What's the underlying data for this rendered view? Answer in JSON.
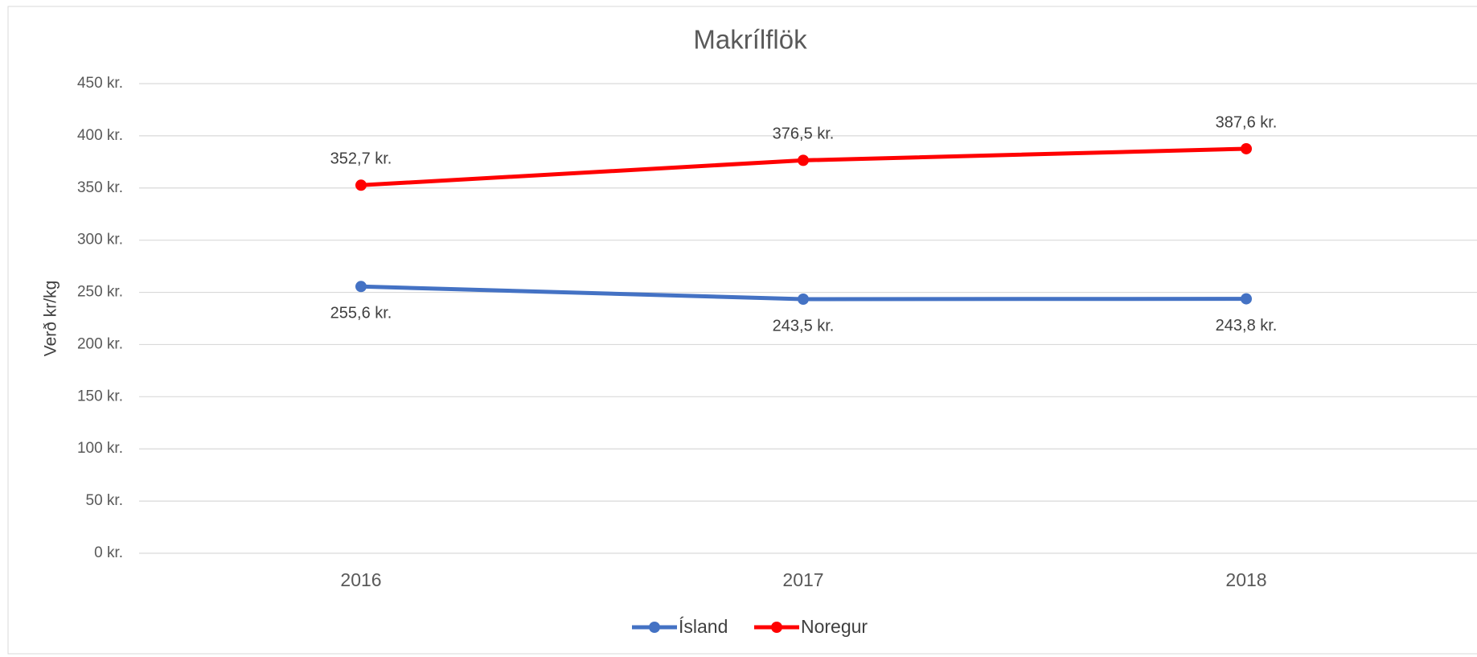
{
  "chart_data": {
    "type": "line",
    "title": "Makrílflök",
    "y_label": "Verð kr/kg",
    "categories": [
      "2016",
      "2017",
      "2018"
    ],
    "series": [
      {
        "name": "Ísland",
        "color": "#4472c4",
        "values": [
          255.6,
          243.5,
          243.8
        ],
        "value_labels": [
          "255,6 kr.",
          "243,5 kr.",
          "243,8 kr."
        ]
      },
      {
        "name": "Noregur",
        "color": "#ff0000",
        "values": [
          352.7,
          376.5,
          387.6
        ],
        "value_labels": [
          "352,7 kr.",
          "376,5 kr.",
          "387,6 kr."
        ]
      }
    ],
    "ylim": [
      0,
      450
    ],
    "yticks": [
      {
        "value": 0,
        "label": "0 kr."
      },
      {
        "value": 50,
        "label": "50 kr."
      },
      {
        "value": 100,
        "label": "100 kr."
      },
      {
        "value": 150,
        "label": "150 kr."
      },
      {
        "value": 200,
        "label": "200 kr."
      },
      {
        "value": 250,
        "label": "250 kr."
      },
      {
        "value": 300,
        "label": "300 kr."
      },
      {
        "value": 350,
        "label": "350 kr."
      },
      {
        "value": 400,
        "label": "400 kr."
      },
      {
        "value": 450,
        "label": "450 kr."
      }
    ],
    "grid": true,
    "legend": "bottom"
  }
}
